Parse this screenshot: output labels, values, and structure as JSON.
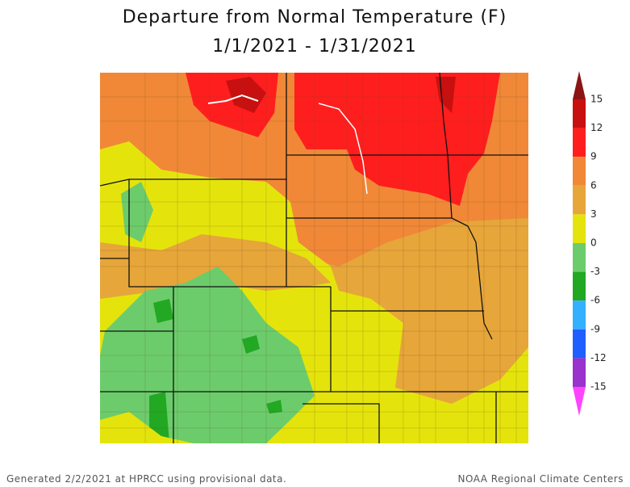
{
  "title": "Departure from Normal Temperature (F)",
  "subtitle": "1/1/2021 - 1/31/2021",
  "legend": {
    "ticks": [
      15,
      12,
      9,
      6,
      3,
      0,
      -3,
      -6,
      -9,
      -12,
      -15
    ],
    "colors": [
      "#8b1414",
      "#c81010",
      "#ff1e1e",
      "#f08838",
      "#e6a63a",
      "#e4e40c",
      "#6ccc6c",
      "#22a822",
      "#33b0ff",
      "#1f5fff",
      "#9933cc",
      "#ff44ff"
    ]
  },
  "footer": {
    "left": "Generated 2/2/2021 at HPRCC using provisional data.",
    "right": "NOAA Regional Climate Centers"
  }
}
